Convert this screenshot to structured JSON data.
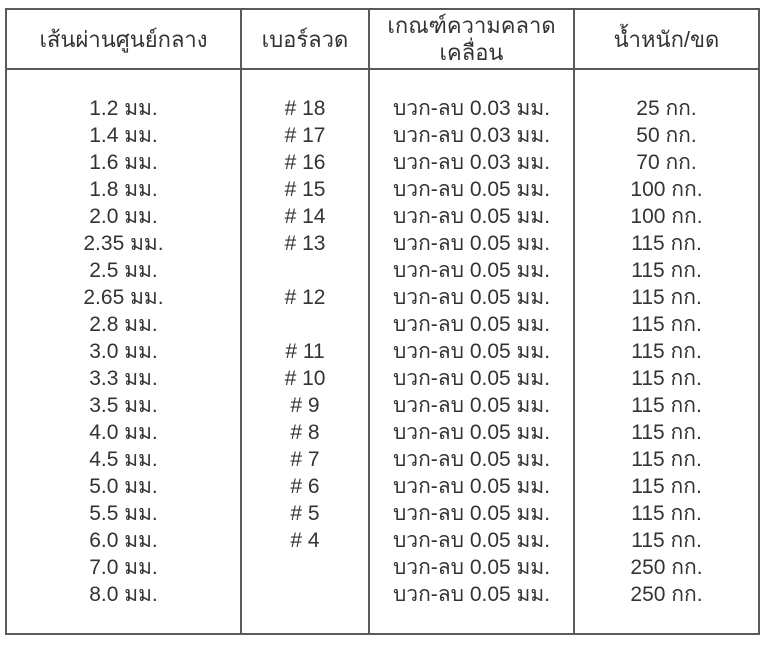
{
  "page": {
    "background_color": "#ffffff",
    "text_color": "#333333",
    "border_color": "#5a5a5a"
  },
  "table": {
    "headers": [
      "เส้นผ่านศูนย์กลาง",
      "เบอร์ลวด",
      "เกณฑ์ความคลาดเคลื่อน",
      "น้ำหนัก/ขด"
    ],
    "rows": [
      [
        "1.2 มม.",
        "# 18",
        "บวก-ลบ 0.03 มม.",
        "25 กก."
      ],
      [
        "1.4 มม.",
        "# 17",
        "บวก-ลบ 0.03 มม.",
        "50 กก."
      ],
      [
        "1.6 มม.",
        "# 16",
        "บวก-ลบ 0.03 มม.",
        "70 กก."
      ],
      [
        "1.8 มม.",
        "# 15",
        "บวก-ลบ 0.05 มม.",
        "100 กก."
      ],
      [
        "2.0 มม.",
        "# 14",
        "บวก-ลบ 0.05 มม.",
        "100 กก."
      ],
      [
        "2.35 มม.",
        "# 13",
        "บวก-ลบ 0.05 มม.",
        "115 กก."
      ],
      [
        "2.5 มม.",
        "",
        "บวก-ลบ 0.05 มม.",
        "115 กก."
      ],
      [
        "2.65 มม.",
        "# 12",
        "บวก-ลบ 0.05 มม.",
        "115 กก."
      ],
      [
        "2.8 มม.",
        "",
        "บวก-ลบ 0.05 มม.",
        "115 กก."
      ],
      [
        "3.0 มม.",
        "# 11",
        "บวก-ลบ 0.05 มม.",
        "115 กก."
      ],
      [
        "3.3 มม.",
        "# 10",
        "บวก-ลบ 0.05 มม.",
        "115 กก."
      ],
      [
        "3.5 มม.",
        "# 9",
        "บวก-ลบ 0.05 มม.",
        "115 กก."
      ],
      [
        "4.0 มม.",
        "# 8",
        "บวก-ลบ 0.05 มม.",
        "115 กก."
      ],
      [
        "4.5 มม.",
        "# 7",
        "บวก-ลบ 0.05 มม.",
        "115 กก."
      ],
      [
        "5.0 มม.",
        "# 6",
        "บวก-ลบ 0.05 มม.",
        "115 กก."
      ],
      [
        "5.5 มม.",
        "# 5",
        "บวก-ลบ 0.05 มม.",
        "115 กก."
      ],
      [
        "6.0 มม.",
        "# 4",
        "บวก-ลบ 0.05 มม.",
        "115 กก."
      ],
      [
        "7.0 มม.",
        "",
        "บวก-ลบ 0.05 มม.",
        "250 กก."
      ],
      [
        "8.0 มม.",
        "",
        "บวก-ลบ 0.05 มม.",
        "250 กก."
      ]
    ]
  }
}
